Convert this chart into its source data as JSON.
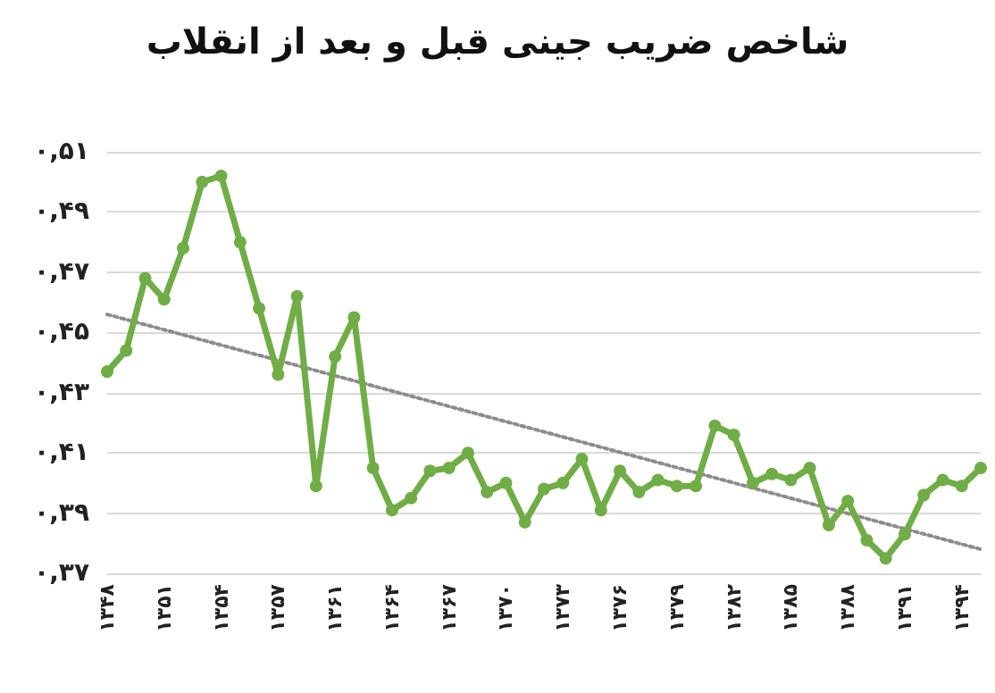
{
  "chart_data": {
    "type": "line",
    "title": "شاخص ضریب جینی قبل و بعد از انقلاب",
    "categories": [
      "۱۳۴۸",
      null,
      null,
      "۱۳۵۱",
      null,
      null,
      "۱۳۵۴",
      null,
      null,
      "۱۳۵۷",
      null,
      null,
      "۱۳۶۱",
      null,
      null,
      "۱۳۶۴",
      null,
      null,
      "۱۳۶۷",
      null,
      null,
      "۱۳۷۰",
      null,
      null,
      "۱۳۷۳",
      null,
      null,
      "۱۳۷۶",
      null,
      null,
      "۱۳۷۹",
      null,
      null,
      "۱۳۸۲",
      null,
      null,
      "۱۳۸۵",
      null,
      null,
      "۱۳۸۸",
      null,
      null,
      "۱۳۹۱",
      null,
      null,
      "۱۳۹۴",
      null
    ],
    "series": [
      {
        "color": "#70ad47",
        "marker": "circle",
        "line_style": "solid",
        "values": [
          0.437,
          0.444,
          0.468,
          0.461,
          0.478,
          0.5,
          0.502,
          0.48,
          0.458,
          0.436,
          0.462,
          0.399,
          0.442,
          0.455,
          0.405,
          0.391,
          0.395,
          0.404,
          0.405,
          0.41,
          0.397,
          0.4,
          0.387,
          0.398,
          0.4,
          0.408,
          0.391,
          0.404,
          0.397,
          0.401,
          0.399,
          0.399,
          0.419,
          0.416,
          0.4,
          0.403,
          0.401,
          0.405,
          0.386,
          0.394,
          0.381,
          0.375,
          0.383,
          0.396,
          0.401,
          0.399,
          0.405
        ]
      },
      {
        "type": "line",
        "color": "#8c8c8c",
        "marker": "none",
        "line_style": "dotted",
        "values": [
          0.456,
          null,
          null,
          null,
          null,
          null,
          null,
          null,
          null,
          null,
          null,
          null,
          null,
          null,
          null,
          null,
          null,
          null,
          null,
          null,
          null,
          null,
          null,
          null,
          null,
          null,
          null,
          null,
          null,
          null,
          null,
          null,
          null,
          null,
          null,
          null,
          null,
          null,
          null,
          null,
          null,
          null,
          null,
          null,
          null,
          null,
          0.378
        ]
      }
    ],
    "ylim": [
      0.37,
      0.51
    ],
    "yticks": [
      {
        "value": 0.37,
        "label": "۰,۳۷"
      },
      {
        "value": 0.39,
        "label": "۰,۳۹"
      },
      {
        "value": 0.41,
        "label": "۰,۴۱"
      },
      {
        "value": 0.43,
        "label": "۰,۴۳"
      },
      {
        "value": 0.45,
        "label": "۰,۴۵"
      },
      {
        "value": 0.47,
        "label": "۰,۴۷"
      },
      {
        "value": 0.49,
        "label": "۰,۴۹"
      },
      {
        "value": 0.51,
        "label": "۰,۵۱"
      }
    ],
    "grid": "y"
  }
}
